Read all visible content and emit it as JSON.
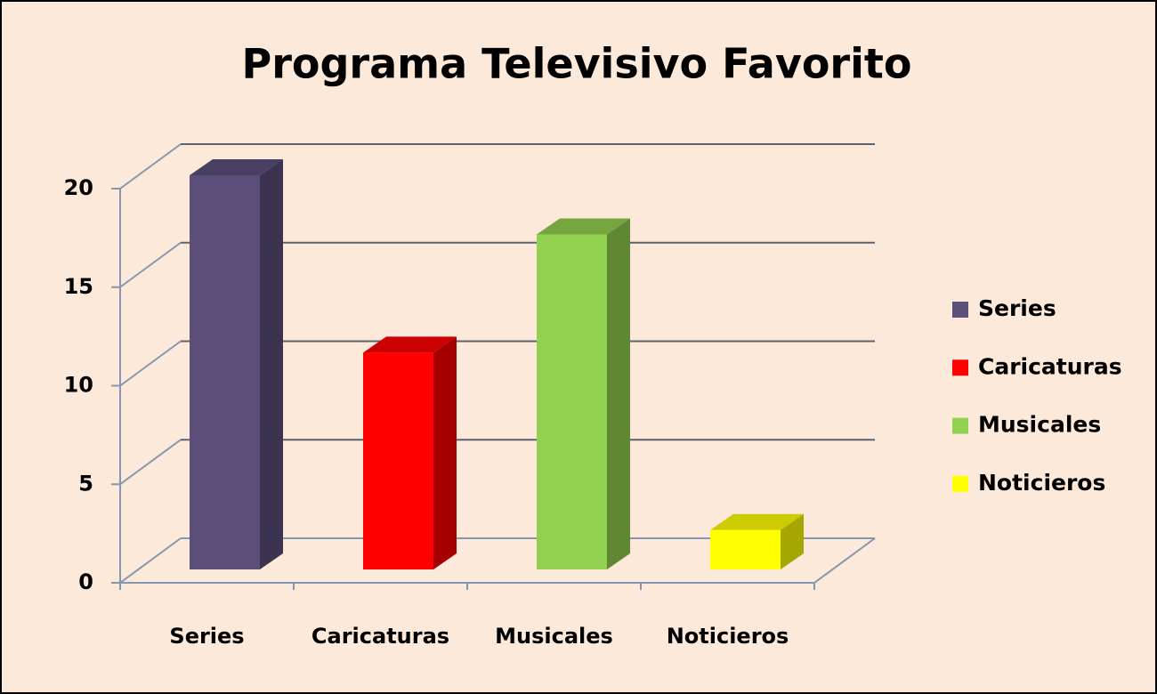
{
  "chart_data": {
    "type": "bar",
    "title": "Programa Televisivo Favorito",
    "categories": [
      "Series",
      "Caricaturas",
      "Musicales",
      "Noticieros"
    ],
    "values": [
      20,
      11,
      17,
      2
    ],
    "colors": [
      "#5b4f7a",
      "#ff0000",
      "#92d050",
      "#ffff00"
    ],
    "ylim": [
      0,
      20
    ],
    "yticks": [
      0,
      5,
      10,
      15,
      20
    ],
    "grid": true,
    "legend": "right"
  }
}
